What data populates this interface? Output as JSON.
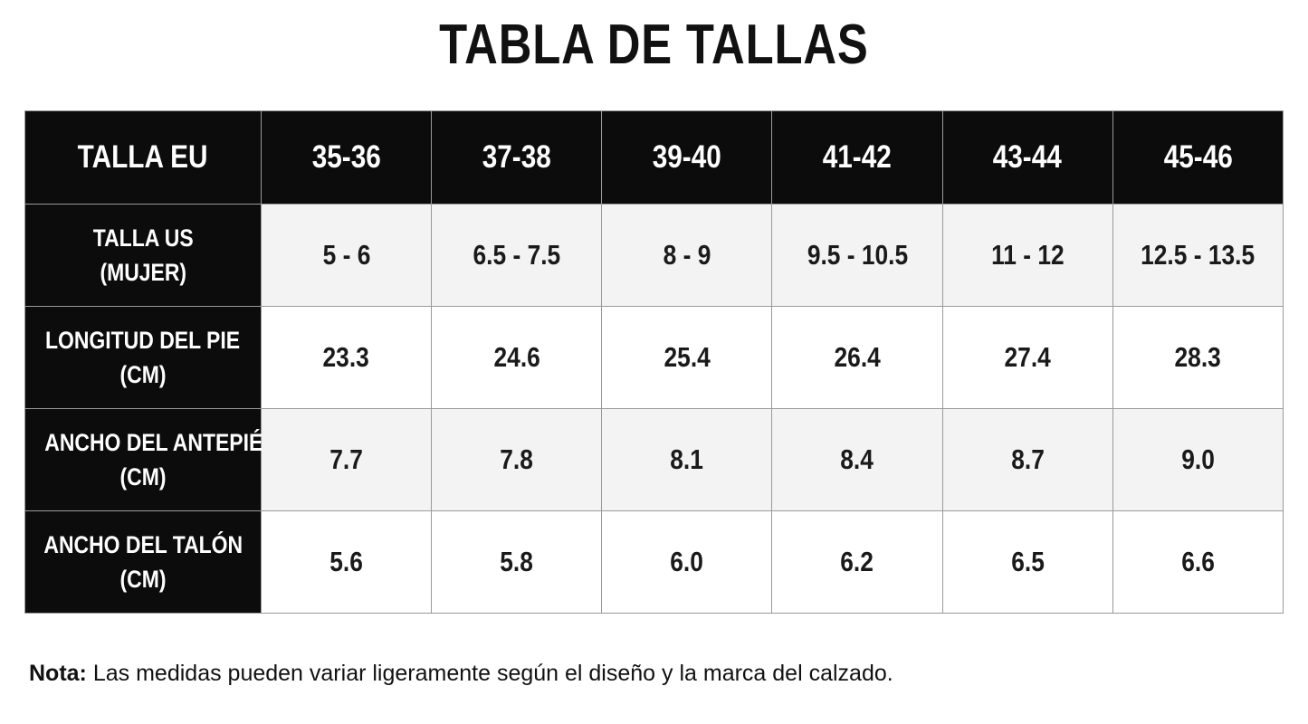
{
  "title": "TABLA DE TALLAS",
  "table": {
    "header": [
      "TALLA EU",
      "35-36",
      "37-38",
      "39-40",
      "41-42",
      "43-44",
      "45-46"
    ],
    "rows": [
      [
        [
          "TALLA US",
          "(MUJER)"
        ],
        "5 - 6",
        "6.5 - 7.5",
        "8 - 9",
        "9.5 - 10.5",
        "11 - 12",
        "12.5 - 13.5"
      ],
      [
        [
          "LONGITUD DEL PIE",
          "(CM)"
        ],
        "23.3",
        "24.6",
        "25.4",
        "26.4",
        "27.4",
        "28.3"
      ],
      [
        [
          "ANCHO DEL ANTEPIÉ",
          "(CM)"
        ],
        "7.7",
        "7.8",
        "8.1",
        "8.4",
        "8.7",
        "9.0"
      ],
      [
        [
          "ANCHO DEL TALÓN",
          "(CM)"
        ],
        "5.6",
        "5.8",
        "6.0",
        "6.2",
        "6.5",
        "6.6"
      ]
    ]
  },
  "note": {
    "label": "Nota:",
    "text": "Las medidas pueden variar ligeramente según el diseño y la marca del calzado."
  }
}
